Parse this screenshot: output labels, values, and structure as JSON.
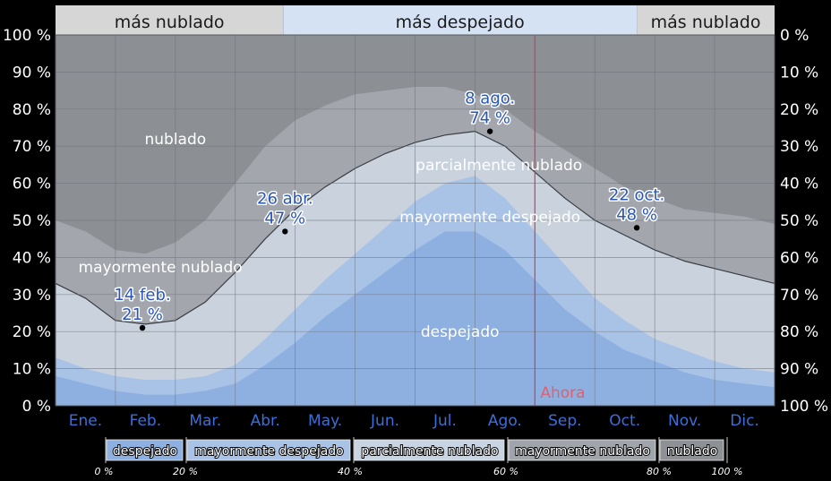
{
  "chart_data": {
    "type": "area",
    "ylabel_left_ticks": [
      "0 %",
      "10 %",
      "20 %",
      "30 %",
      "40 %",
      "50 %",
      "60 %",
      "70 %",
      "80 %",
      "90 %",
      "100 %"
    ],
    "ylabel_right_ticks": [
      "100 %",
      "90 %",
      "80 %",
      "70 %",
      "60 %",
      "50 %",
      "40 %",
      "30 %",
      "20 %",
      "10 %",
      "0 %"
    ],
    "ylim": [
      0,
      100
    ],
    "months": [
      "Ene.",
      "Feb.",
      "Mar.",
      "Abr.",
      "May.",
      "Jun.",
      "Jul.",
      "Ago.",
      "Sep.",
      "Oct.",
      "Nov.",
      "Dic."
    ],
    "seasons": [
      {
        "label": "más nublado",
        "from": 0,
        "to": 3.8
      },
      {
        "label": "más despejado",
        "from": 3.8,
        "to": 9.7
      },
      {
        "label": "más nublado",
        "from": 9.7,
        "to": 12
      }
    ],
    "x_month": [
      0,
      0.5,
      1,
      1.5,
      2,
      2.5,
      3,
      3.5,
      4,
      4.5,
      5,
      5.5,
      6,
      6.5,
      7,
      7.5,
      8,
      8.5,
      9,
      9.5,
      10,
      10.5,
      11,
      11.5,
      12
    ],
    "series": [
      {
        "name": "despejado",
        "values": [
          8,
          6,
          4,
          3,
          3,
          4,
          6,
          11,
          17,
          24,
          30,
          36,
          42,
          47,
          47,
          42,
          34,
          26,
          20,
          15,
          12,
          9,
          7,
          6,
          5
        ]
      },
      {
        "name": "mayormente despejado",
        "values": [
          13,
          10,
          8,
          7,
          7,
          8,
          11,
          18,
          26,
          34,
          41,
          48,
          55,
          60,
          62,
          56,
          47,
          38,
          29,
          23,
          18,
          15,
          12,
          10,
          9
        ]
      },
      {
        "name": "parcialmente nublado",
        "values": [
          33,
          29,
          23,
          22,
          23,
          28,
          36,
          45,
          53,
          59,
          64,
          68,
          71,
          73,
          74,
          70,
          63,
          56,
          50,
          46,
          42,
          39,
          37,
          35,
          33
        ]
      },
      {
        "name": "mayormente nublado",
        "values": [
          50,
          47,
          42,
          41,
          44,
          50,
          60,
          70,
          77,
          81,
          84,
          85,
          86,
          86,
          84,
          80,
          74,
          69,
          64,
          59,
          56,
          53,
          52,
          51,
          49
        ]
      },
      {
        "name": "nublado",
        "values": [
          100,
          100,
          100,
          100,
          100,
          100,
          100,
          100,
          100,
          100,
          100,
          100,
          100,
          100,
          100,
          100,
          100,
          100,
          100,
          100,
          100,
          100,
          100,
          100,
          100
        ]
      }
    ],
    "band_labels": [
      {
        "text": "nublado",
        "month": 2.0,
        "value": 72
      },
      {
        "text": "mayormente nublado",
        "month": 1.75,
        "value": 37.5
      },
      {
        "text": "parcialmente nublado",
        "month": 7.4,
        "value": 65
      },
      {
        "text": "mayormente despejado",
        "month": 7.25,
        "value": 51
      },
      {
        "text": "despejado",
        "month": 6.75,
        "value": 20
      }
    ],
    "annotations": [
      {
        "date": "14 feb.",
        "value": 21,
        "label": "21 %",
        "month": 1.45
      },
      {
        "date": "26 abr.",
        "value": 47,
        "label": "47 %",
        "month": 3.83
      },
      {
        "date": "8 ago.",
        "value": 74,
        "label": "74 %",
        "month": 7.25
      },
      {
        "date": "22 oct.",
        "value": 48,
        "label": "48 %",
        "month": 9.7
      }
    ],
    "now": {
      "label": "Ahora",
      "month": 8.0
    },
    "legend": [
      {
        "label": "despejado",
        "color": "#8eb0e0"
      },
      {
        "label": "mayormente despejado",
        "color": "#a9c3e7"
      },
      {
        "label": "parcialmente nublado",
        "color": "#c9d4e2"
      },
      {
        "label": "mayormente nublado",
        "color": "#a0a4ab"
      },
      {
        "label": "nublado",
        "color": "#8d9196"
      }
    ],
    "legend_ticks": [
      "0 %",
      "20 %",
      "40 %",
      "60 %",
      "80 %",
      "100 %"
    ],
    "colors": {
      "despejado": "#8eb0e0",
      "mayormente_despejado": "#a9c3e7",
      "parcialmente_nublado": "#c9d2dd",
      "mayormente_nublado": "#a3a7ad",
      "nublado": "#8c9095",
      "season_cloudy": "#d6d6d6",
      "season_clear": "#d5e2f4",
      "now_line": "#d04050",
      "grid": "#6d7177"
    }
  }
}
